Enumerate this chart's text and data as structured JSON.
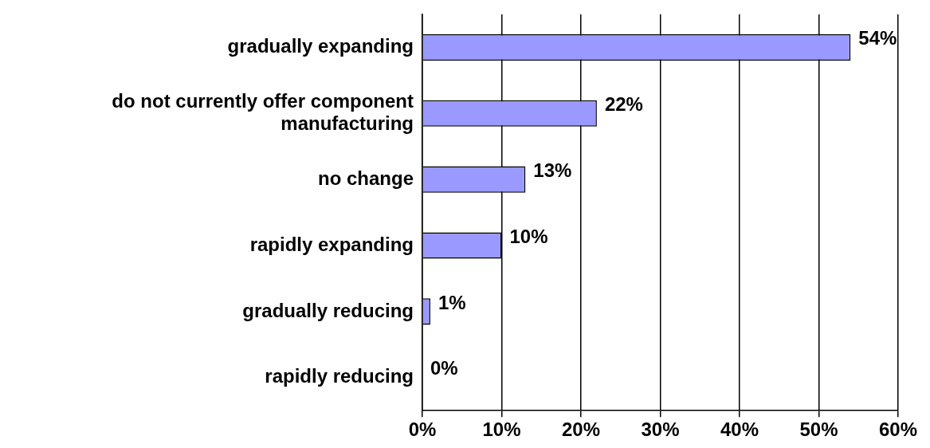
{
  "chart_data": {
    "type": "bar",
    "orientation": "horizontal",
    "categories": [
      "gradually expanding",
      "do not currently offer component manufacturing",
      "no change",
      "rapidly expanding",
      "gradually reducing",
      "rapidly reducing"
    ],
    "values": [
      54,
      22,
      13,
      10,
      1,
      0
    ],
    "value_labels": [
      "54%",
      "22%",
      "13%",
      "10%",
      "1%",
      "0%"
    ],
    "color": "#9999ff",
    "xlim": [
      0,
      60
    ],
    "xticks": [
      {
        "value": 0,
        "label": "0%"
      },
      {
        "value": 10,
        "label": "10%"
      },
      {
        "value": 20,
        "label": "20%"
      },
      {
        "value": 30,
        "label": "30%"
      },
      {
        "value": 40,
        "label": "40%"
      },
      {
        "value": 50,
        "label": "50%"
      },
      {
        "value": 60,
        "label": "60%"
      }
    ],
    "grid": "x",
    "legend": false
  }
}
